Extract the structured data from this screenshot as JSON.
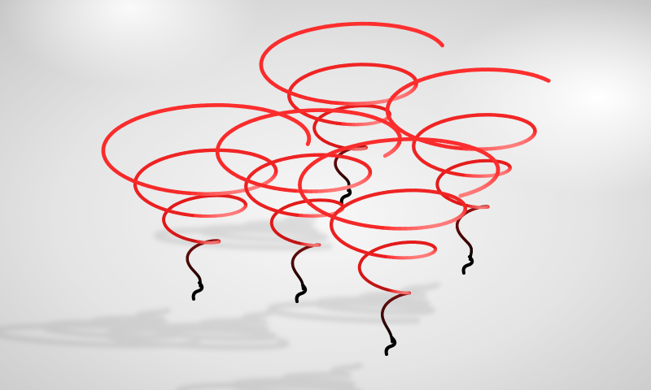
{
  "scene": {
    "background": {
      "center_color": "#ffffff",
      "edge_color": "#cfcfcf"
    },
    "spiral_colors": {
      "top": "#ff3030",
      "highlight": "#ffb0b0",
      "mid": "#e01818",
      "bottom": "#000000"
    },
    "shadow_color": "#9a9a9a",
    "spiral_count": 5,
    "spirals": [
      {
        "id": "left",
        "turns": 4
      },
      {
        "id": "center-back",
        "turns": 4
      },
      {
        "id": "center",
        "turns": 4
      },
      {
        "id": "right",
        "turns": 4
      },
      {
        "id": "front",
        "turns": 4
      }
    ]
  }
}
